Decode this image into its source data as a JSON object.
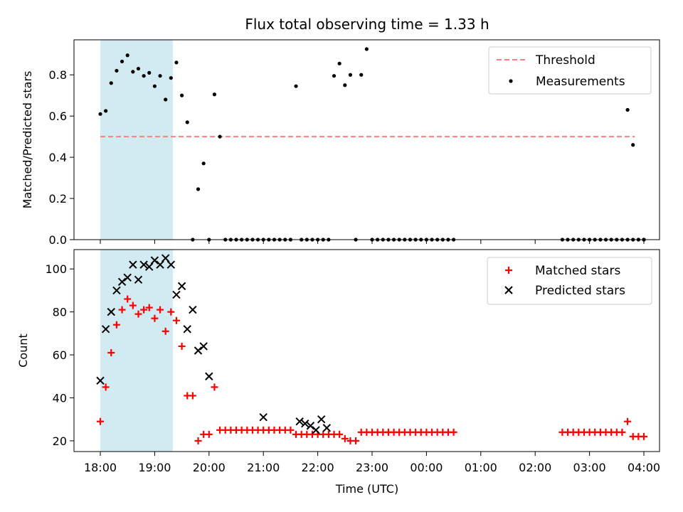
{
  "chart_data": {
    "type": "scatter",
    "title": "Flux total observing time = 1.33 h",
    "xlabel": "Time (UTC)",
    "x_ticks": [
      "18:00",
      "19:00",
      "20:00",
      "21:00",
      "22:00",
      "23:00",
      "00:00",
      "01:00",
      "02:00",
      "03:00",
      "04:00"
    ],
    "shaded_interval": {
      "start": "18:00",
      "end": "19:20",
      "color": "#add8e6"
    },
    "top": {
      "ylabel": "Matched/Predicted stars",
      "ylim": [
        0,
        0.97
      ],
      "y_ticks": [
        "0.0",
        "0.2",
        "0.4",
        "0.6",
        "0.8"
      ],
      "threshold": {
        "name": "Threshold",
        "value": 0.5,
        "x_start": "18:00",
        "x_end": "03:50",
        "color": "#ff7f7f"
      },
      "series": [
        {
          "name": "Measurements",
          "color": "#000000",
          "points": [
            [
              "18:00",
              0.61
            ],
            [
              "18:06",
              0.625
            ],
            [
              "18:12",
              0.76
            ],
            [
              "18:18",
              0.82
            ],
            [
              "18:24",
              0.865
            ],
            [
              "18:30",
              0.895
            ],
            [
              "18:36",
              0.815
            ],
            [
              "18:42",
              0.83
            ],
            [
              "18:48",
              0.795
            ],
            [
              "18:54",
              0.81
            ],
            [
              "19:00",
              0.745
            ],
            [
              "19:06",
              0.795
            ],
            [
              "19:12",
              0.68
            ],
            [
              "19:18",
              0.785
            ],
            [
              "19:24",
              0.86
            ],
            [
              "19:30",
              0.7
            ],
            [
              "19:36",
              0.57
            ],
            [
              "19:42",
              0.0
            ],
            [
              "19:48",
              0.245
            ],
            [
              "19:54",
              0.37
            ],
            [
              "20:00",
              0.0
            ],
            [
              "20:06",
              0.705
            ],
            [
              "20:12",
              0.5
            ],
            [
              "20:18",
              0.0
            ],
            [
              "20:24",
              0.0
            ],
            [
              "20:30",
              0.0
            ],
            [
              "20:36",
              0.0
            ],
            [
              "20:42",
              0.0
            ],
            [
              "20:48",
              0.0
            ],
            [
              "20:54",
              0.0
            ],
            [
              "21:00",
              0.0
            ],
            [
              "21:06",
              0.0
            ],
            [
              "21:12",
              0.0
            ],
            [
              "21:18",
              0.0
            ],
            [
              "21:24",
              0.0
            ],
            [
              "21:30",
              0.0
            ],
            [
              "21:36",
              0.745
            ],
            [
              "21:42",
              0.0
            ],
            [
              "21:48",
              0.0
            ],
            [
              "21:54",
              0.0
            ],
            [
              "22:00",
              0.0
            ],
            [
              "22:06",
              0.0
            ],
            [
              "22:12",
              0.0
            ],
            [
              "22:18",
              0.795
            ],
            [
              "22:24",
              0.855
            ],
            [
              "22:30",
              0.75
            ],
            [
              "22:36",
              0.8
            ],
            [
              "22:42",
              0.0
            ],
            [
              "22:48",
              0.8
            ],
            [
              "22:54",
              0.925
            ],
            [
              "23:00",
              0.0
            ],
            [
              "23:06",
              0.0
            ],
            [
              "23:12",
              0.0
            ],
            [
              "23:18",
              0.0
            ],
            [
              "23:24",
              0.0
            ],
            [
              "23:30",
              0.0
            ],
            [
              "23:36",
              0.0
            ],
            [
              "23:42",
              0.0
            ],
            [
              "23:48",
              0.0
            ],
            [
              "23:54",
              0.0
            ],
            [
              "00:00",
              0.0
            ],
            [
              "00:06",
              0.0
            ],
            [
              "00:12",
              0.0
            ],
            [
              "00:18",
              0.0
            ],
            [
              "00:24",
              0.0
            ],
            [
              "00:30",
              0.0
            ],
            [
              "02:30",
              0.0
            ],
            [
              "02:36",
              0.0
            ],
            [
              "02:42",
              0.0
            ],
            [
              "02:48",
              0.0
            ],
            [
              "02:54",
              0.0
            ],
            [
              "03:00",
              0.0
            ],
            [
              "03:06",
              0.0
            ],
            [
              "03:12",
              0.0
            ],
            [
              "03:18",
              0.0
            ],
            [
              "03:24",
              0.0
            ],
            [
              "03:30",
              0.0
            ],
            [
              "03:36",
              0.0
            ],
            [
              "03:42",
              0.0
            ],
            [
              "03:48",
              0.0
            ],
            [
              "03:54",
              0.0
            ],
            [
              "04:00",
              0.0
            ],
            [
              "03:42",
              0.63
            ],
            [
              "03:48",
              0.46
            ],
            [
              "03:54",
              0.0
            ],
            [
              "04:00",
              0.0
            ]
          ]
        }
      ]
    },
    "bottom": {
      "ylabel": "Count",
      "ylim": [
        15,
        109
      ],
      "y_ticks": [
        "20",
        "40",
        "60",
        "80",
        "100"
      ],
      "series": [
        {
          "name": "Matched stars",
          "marker": "+",
          "color": "#ff0000",
          "points": [
            [
              "18:00",
              29
            ],
            [
              "18:06",
              45
            ],
            [
              "18:12",
              61
            ],
            [
              "18:18",
              74
            ],
            [
              "18:24",
              81
            ],
            [
              "18:30",
              86
            ],
            [
              "18:36",
              83
            ],
            [
              "18:42",
              79
            ],
            [
              "18:48",
              81
            ],
            [
              "18:54",
              82
            ],
            [
              "19:00",
              77
            ],
            [
              "19:06",
              81
            ],
            [
              "19:12",
              71
            ],
            [
              "19:18",
              80
            ],
            [
              "19:24",
              76
            ],
            [
              "19:30",
              64
            ],
            [
              "19:36",
              41
            ],
            [
              "19:42",
              41
            ],
            [
              "19:48",
              20
            ],
            [
              "19:54",
              23
            ],
            [
              "20:00",
              23
            ],
            [
              "20:06",
              45
            ],
            [
              "20:12",
              25
            ],
            [
              "20:18",
              25
            ],
            [
              "20:24",
              25
            ],
            [
              "20:30",
              25
            ],
            [
              "20:36",
              25
            ],
            [
              "20:42",
              25
            ],
            [
              "20:48",
              25
            ],
            [
              "20:54",
              25
            ],
            [
              "21:00",
              25
            ],
            [
              "21:06",
              25
            ],
            [
              "21:12",
              25
            ],
            [
              "21:18",
              25
            ],
            [
              "21:24",
              25
            ],
            [
              "21:30",
              25
            ],
            [
              "21:36",
              23
            ],
            [
              "21:42",
              23
            ],
            [
              "21:48",
              23
            ],
            [
              "21:54",
              23
            ],
            [
              "22:00",
              23
            ],
            [
              "22:06",
              23
            ],
            [
              "22:12",
              23
            ],
            [
              "22:18",
              23
            ],
            [
              "22:24",
              23
            ],
            [
              "22:30",
              21
            ],
            [
              "22:36",
              20
            ],
            [
              "22:42",
              20
            ],
            [
              "22:48",
              24
            ],
            [
              "22:54",
              24
            ],
            [
              "23:00",
              24
            ],
            [
              "23:06",
              24
            ],
            [
              "23:12",
              24
            ],
            [
              "23:18",
              24
            ],
            [
              "23:24",
              24
            ],
            [
              "23:30",
              24
            ],
            [
              "23:36",
              24
            ],
            [
              "23:42",
              24
            ],
            [
              "23:48",
              24
            ],
            [
              "23:54",
              24
            ],
            [
              "00:00",
              24
            ],
            [
              "00:06",
              24
            ],
            [
              "00:12",
              24
            ],
            [
              "00:18",
              24
            ],
            [
              "00:24",
              24
            ],
            [
              "00:30",
              24
            ],
            [
              "02:30",
              24
            ],
            [
              "02:36",
              24
            ],
            [
              "02:42",
              24
            ],
            [
              "02:48",
              24
            ],
            [
              "02:54",
              24
            ],
            [
              "03:00",
              24
            ],
            [
              "03:06",
              24
            ],
            [
              "03:12",
              24
            ],
            [
              "03:18",
              24
            ],
            [
              "03:24",
              24
            ],
            [
              "03:30",
              24
            ],
            [
              "03:36",
              24
            ],
            [
              "03:42",
              29
            ],
            [
              "03:48",
              22
            ],
            [
              "03:54",
              22
            ],
            [
              "04:00",
              22
            ]
          ]
        },
        {
          "name": "Predicted stars",
          "marker": "x",
          "color": "#000000",
          "points": [
            [
              "18:00",
              48
            ],
            [
              "18:06",
              72
            ],
            [
              "18:12",
              80
            ],
            [
              "18:18",
              90
            ],
            [
              "18:24",
              94
            ],
            [
              "18:30",
              96
            ],
            [
              "18:36",
              102
            ],
            [
              "18:42",
              95
            ],
            [
              "18:48",
              102
            ],
            [
              "18:54",
              101
            ],
            [
              "19:00",
              104
            ],
            [
              "19:06",
              102
            ],
            [
              "19:12",
              105
            ],
            [
              "19:18",
              102
            ],
            [
              "19:24",
              88
            ],
            [
              "19:30",
              92
            ],
            [
              "19:36",
              72
            ],
            [
              "19:42",
              81
            ],
            [
              "19:48",
              62
            ],
            [
              "19:54",
              64
            ],
            [
              "20:00",
              50
            ],
            [
              "21:00",
              31
            ],
            [
              "21:40",
              29
            ],
            [
              "21:46",
              28
            ],
            [
              "21:52",
              27
            ],
            [
              "21:58",
              25
            ],
            [
              "22:04",
              30
            ],
            [
              "22:10",
              26
            ]
          ]
        }
      ]
    }
  }
}
